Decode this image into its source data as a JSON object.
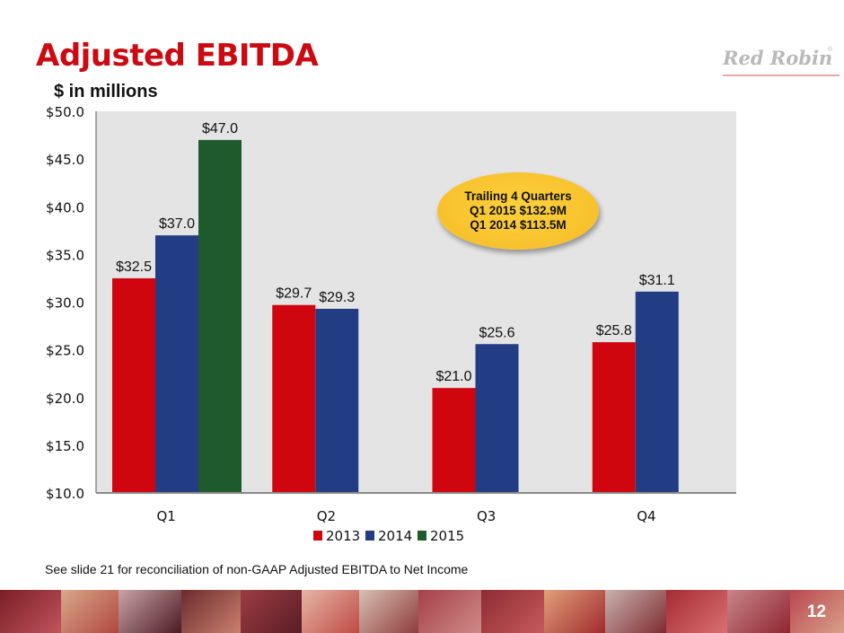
{
  "slide": {
    "title": "Adjusted EBITDA",
    "subtitle": "$ in millions",
    "logo_text": "Red Robin",
    "logo_mark": "®",
    "footnote": "See slide 21 for reconciliation of non-GAAP Adjusted EBITDA to Net Income",
    "page_number": "12",
    "brand_color": "#cc0a12"
  },
  "callout": {
    "line1": "Trailing 4 Quarters",
    "line2": "Q1 2015 $132.9M",
    "line3": "Q1 2014 $113.5M",
    "color": "#f7c12e"
  },
  "chart_data": {
    "type": "bar",
    "title": "Adjusted EBITDA",
    "subtitle": "$ in millions",
    "xlabel": "",
    "ylabel": "",
    "categories": [
      "Q1",
      "Q2",
      "Q3",
      "Q4"
    ],
    "series": [
      {
        "name": "2013",
        "color": "#d0060f",
        "values": [
          32.5,
          29.7,
          21.0,
          25.8
        ],
        "labels": [
          "$32.5",
          "$29.7",
          "$21.0",
          "$25.8"
        ]
      },
      {
        "name": "2014",
        "color": "#233d84",
        "values": [
          37.0,
          29.3,
          25.6,
          31.1
        ],
        "labels": [
          "$37.0",
          "$29.3",
          "$25.6",
          "$31.1"
        ]
      },
      {
        "name": "2015",
        "color": "#1e5a2b",
        "values": [
          47.0,
          null,
          null,
          null
        ],
        "labels": [
          "$47.0",
          "",
          "",
          ""
        ]
      }
    ],
    "ylim": [
      10,
      50
    ],
    "yticks": [
      10,
      15,
      20,
      25,
      30,
      35,
      40,
      45,
      50
    ],
    "ytick_labels": [
      "$10.0",
      "$15.0",
      "$20.0",
      "$25.0",
      "$30.0",
      "$35.0",
      "$40.0",
      "$45.0",
      "$50.0"
    ],
    "grid": false,
    "plot_background": "#e4e4e4",
    "legend": {
      "position": "bottom",
      "entries": [
        "2013",
        "2014",
        "2015"
      ]
    }
  }
}
